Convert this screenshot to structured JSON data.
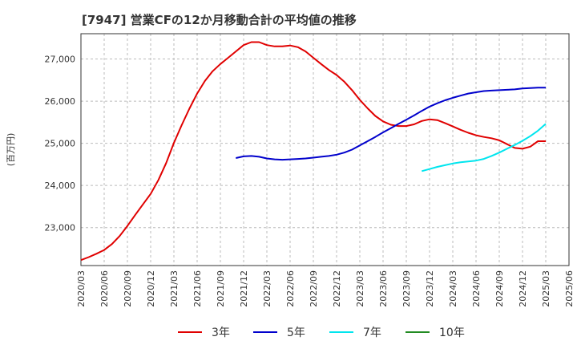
{
  "chart_data": {
    "type": "line",
    "title": "[7947]  営業CFの12か月移動合計の平均値の推移",
    "ylabel": "(百万円)",
    "xlabel": "",
    "ylim": [
      22100,
      27600
    ],
    "xlim": [
      "2020-03",
      "2025-06"
    ],
    "y_ticks": [
      23000,
      24000,
      25000,
      26000,
      27000
    ],
    "y_tick_labels": [
      "23,000",
      "24,000",
      "25,000",
      "26,000",
      "27,000"
    ],
    "x_tick_labels": [
      "2020/03",
      "2020/06",
      "2020/09",
      "2020/12",
      "2021/03",
      "2021/06",
      "2021/09",
      "2021/12",
      "2022/03",
      "2022/06",
      "2022/09",
      "2022/12",
      "2023/03",
      "2023/06",
      "2023/09",
      "2023/12",
      "2024/03",
      "2024/06",
      "2024/09",
      "2024/12",
      "2025/03",
      "2025/06"
    ],
    "grid": true,
    "legend_position": "bottom",
    "series": [
      {
        "name": "3年",
        "color": "#e00000",
        "x": [
          "2020-03",
          "2020-04",
          "2020-05",
          "2020-06",
          "2020-07",
          "2020-08",
          "2020-09",
          "2020-10",
          "2020-11",
          "2020-12",
          "2021-01",
          "2021-02",
          "2021-03",
          "2021-04",
          "2021-05",
          "2021-06",
          "2021-07",
          "2021-08",
          "2021-09",
          "2021-10",
          "2021-11",
          "2021-12",
          "2022-01",
          "2022-02",
          "2022-03",
          "2022-04",
          "2022-05",
          "2022-06",
          "2022-07",
          "2022-08",
          "2022-09",
          "2022-10",
          "2022-11",
          "2022-12",
          "2023-01",
          "2023-02",
          "2023-03",
          "2023-04",
          "2023-05",
          "2023-06",
          "2023-07",
          "2023-08",
          "2023-09",
          "2023-10",
          "2023-11",
          "2023-12",
          "2024-01",
          "2024-02",
          "2024-03",
          "2024-04",
          "2024-05",
          "2024-06",
          "2024-07",
          "2024-08",
          "2024-09",
          "2024-10",
          "2024-11",
          "2024-12",
          "2025-01",
          "2025-02",
          "2025-03"
        ],
        "values": [
          22230,
          22300,
          22380,
          22470,
          22610,
          22800,
          23040,
          23300,
          23550,
          23800,
          24130,
          24530,
          25010,
          25430,
          25820,
          26180,
          26480,
          26710,
          26880,
          27030,
          27180,
          27330,
          27400,
          27400,
          27330,
          27300,
          27300,
          27320,
          27280,
          27180,
          27030,
          26880,
          26740,
          26620,
          26460,
          26260,
          26030,
          25830,
          25650,
          25520,
          25440,
          25410,
          25410,
          25450,
          25530,
          25570,
          25550,
          25480,
          25400,
          25320,
          25250,
          25190,
          25150,
          25120,
          25070,
          24980,
          24890,
          24870,
          24920,
          25050,
          25050
        ],
        "_note_last": "series ends at 2025-03"
      },
      {
        "name": "5年",
        "color": "#0000cc",
        "x": [
          "2021-11",
          "2021-12",
          "2022-01",
          "2022-02",
          "2022-03",
          "2022-04",
          "2022-05",
          "2022-06",
          "2022-07",
          "2022-08",
          "2022-09",
          "2022-10",
          "2022-11",
          "2022-12",
          "2023-01",
          "2023-02",
          "2023-03",
          "2023-04",
          "2023-05",
          "2023-06",
          "2023-07",
          "2023-08",
          "2023-09",
          "2023-10",
          "2023-11",
          "2023-12",
          "2024-01",
          "2024-02",
          "2024-03",
          "2024-04",
          "2024-05",
          "2024-06",
          "2024-07",
          "2024-08",
          "2024-09",
          "2024-10",
          "2024-11",
          "2024-12",
          "2025-01",
          "2025-02",
          "2025-03"
        ],
        "values": [
          24650,
          24690,
          24700,
          24680,
          24640,
          24620,
          24610,
          24620,
          24630,
          24640,
          24660,
          24680,
          24700,
          24730,
          24780,
          24850,
          24950,
          25050,
          25150,
          25260,
          25360,
          25460,
          25560,
          25660,
          25770,
          25870,
          25950,
          26020,
          26080,
          26130,
          26180,
          26210,
          26240,
          26250,
          26260,
          26270,
          26280,
          26300,
          26310,
          26320,
          26320
        ]
      },
      {
        "name": "7年",
        "color": "#00e5ee",
        "x": [
          "2023-11",
          "2023-12",
          "2024-01",
          "2024-02",
          "2024-03",
          "2024-04",
          "2024-05",
          "2024-06",
          "2024-07",
          "2024-08",
          "2024-09",
          "2024-10",
          "2024-11",
          "2024-12",
          "2025-01",
          "2025-02",
          "2025-03"
        ],
        "values": [
          24340,
          24390,
          24440,
          24480,
          24520,
          24550,
          24570,
          24590,
          24630,
          24700,
          24780,
          24870,
          24960,
          25060,
          25170,
          25300,
          25460
        ]
      },
      {
        "name": "10年",
        "color": "#228b22",
        "x": [],
        "values": []
      }
    ]
  }
}
